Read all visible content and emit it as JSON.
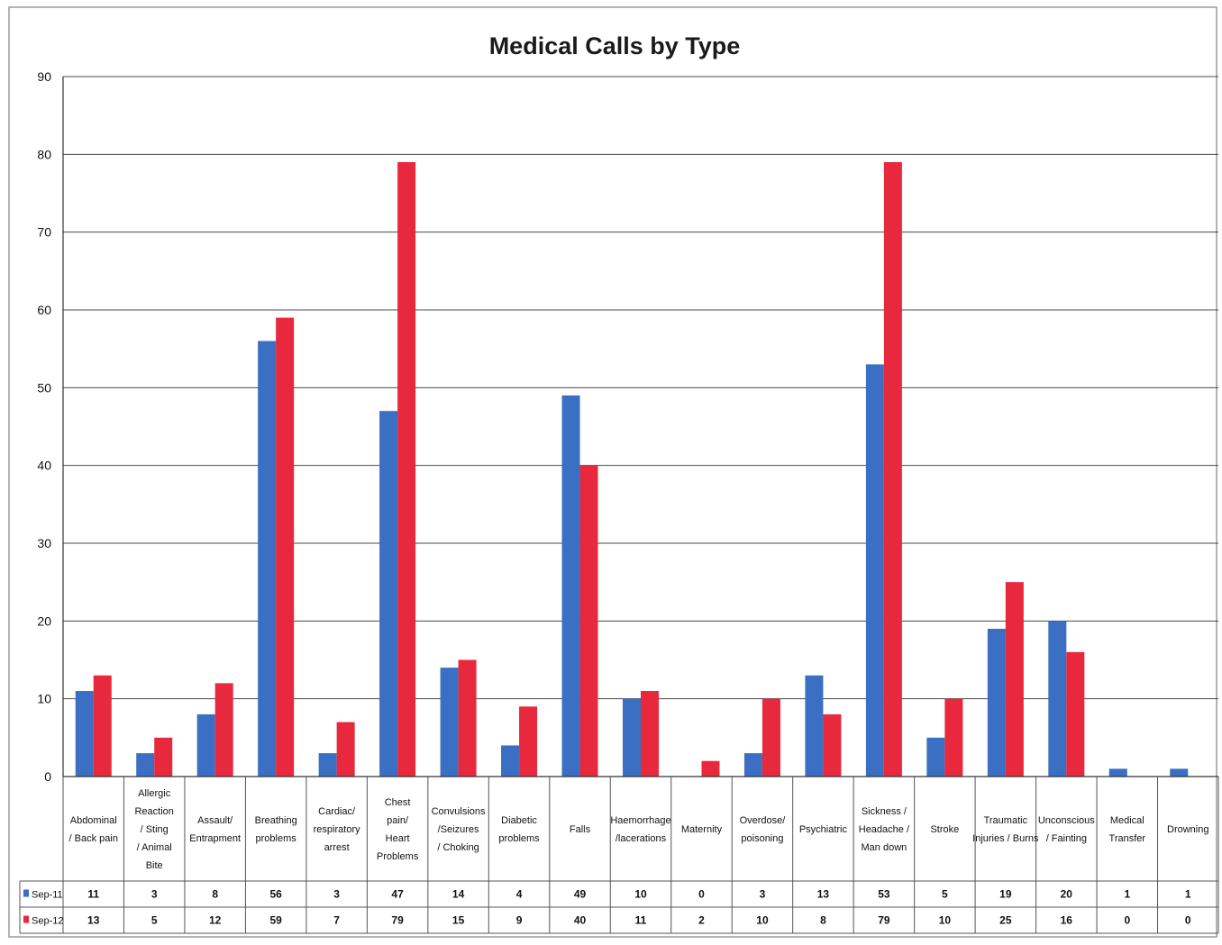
{
  "chart_data": {
    "type": "bar",
    "title": "Medical Calls by Type",
    "xlabel": "",
    "ylabel": "",
    "ylim": [
      0,
      90
    ],
    "yticks": [
      0,
      10,
      20,
      30,
      40,
      50,
      60,
      70,
      80,
      90
    ],
    "grid": true,
    "legend": "bottom-left data table",
    "categories": [
      [
        "Abdominal",
        "/ Back pain"
      ],
      [
        "Allergic",
        "Reaction",
        "/ Sting",
        "/ Animal",
        "Bite"
      ],
      [
        "Assault/",
        "Entrapment"
      ],
      [
        "Breathing",
        "problems"
      ],
      [
        "Cardiac/",
        "respiratory",
        "arrest"
      ],
      [
        "Chest",
        "pain/",
        "Heart",
        "Problems"
      ],
      [
        "Convulsions",
        "/Seizures",
        "/ Choking"
      ],
      [
        "Diabetic",
        "problems"
      ],
      [
        "Falls"
      ],
      [
        "Haemorrhage",
        "/lacerations"
      ],
      [
        "Maternity"
      ],
      [
        "Overdose/",
        "poisoning"
      ],
      [
        "Psychiatric"
      ],
      [
        "Sickness /",
        "Headache /",
        "Man down"
      ],
      [
        "Stroke"
      ],
      [
        "Traumatic",
        "Injuries / Burns"
      ],
      [
        "Unconscious",
        "/ Fainting"
      ],
      [
        "Medical",
        "Transfer"
      ],
      [
        "Drowning"
      ]
    ],
    "series": [
      {
        "name": "Sep-11",
        "color": "#3a6fc4",
        "values": [
          11,
          3,
          8,
          56,
          3,
          47,
          14,
          4,
          49,
          10,
          0,
          3,
          13,
          53,
          5,
          19,
          20,
          1,
          1
        ]
      },
      {
        "name": "Sep-12",
        "color": "#e8283c",
        "values": [
          13,
          5,
          12,
          59,
          7,
          79,
          15,
          9,
          40,
          11,
          2,
          10,
          8,
          79,
          10,
          25,
          16,
          0,
          0
        ]
      }
    ]
  }
}
